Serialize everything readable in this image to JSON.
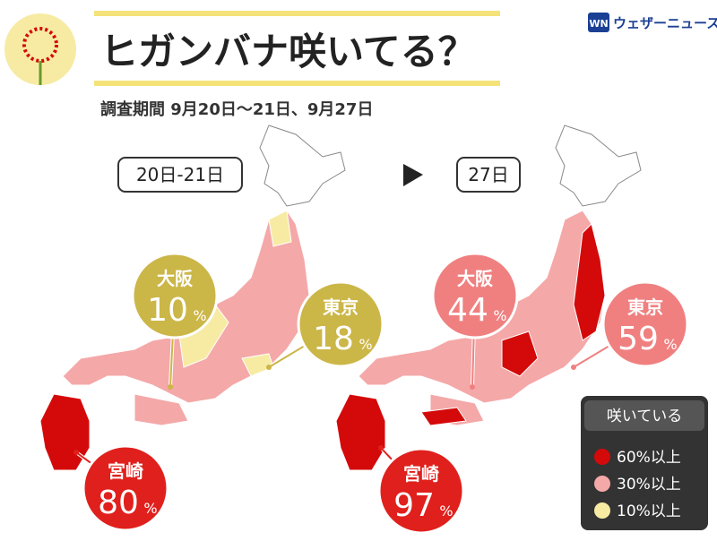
{
  "header": {
    "title": "ヒガンバナ咲いてる？",
    "subtitle": "調査期間 9月20日〜21日、9月27日",
    "brand": "ウェザーニュース",
    "brand_icon": "WN"
  },
  "panels": [
    {
      "label": "20日-21日",
      "bubbles": [
        {
          "city": "大阪",
          "value": 10,
          "unit": "%",
          "color": "#cbb648"
        },
        {
          "city": "東京",
          "value": 18,
          "unit": "%",
          "color": "#cbb648"
        },
        {
          "city": "宮崎",
          "value": 80,
          "unit": "%",
          "color": "#e0201c"
        }
      ]
    },
    {
      "label": "27日",
      "bubbles": [
        {
          "city": "大阪",
          "value": 44,
          "unit": "%",
          "color": "#f08080"
        },
        {
          "city": "東京",
          "value": 59,
          "unit": "%",
          "color": "#f08080"
        },
        {
          "city": "宮崎",
          "value": 97,
          "unit": "%",
          "color": "#e0201c"
        }
      ]
    }
  ],
  "legend": {
    "title": "咲いている",
    "items": [
      {
        "label": "60%以上",
        "color": "#d40a0a"
      },
      {
        "label": "30%以上",
        "color": "#f4a8a8"
      },
      {
        "label": "10%以上",
        "color": "#f7eba4"
      }
    ]
  }
}
